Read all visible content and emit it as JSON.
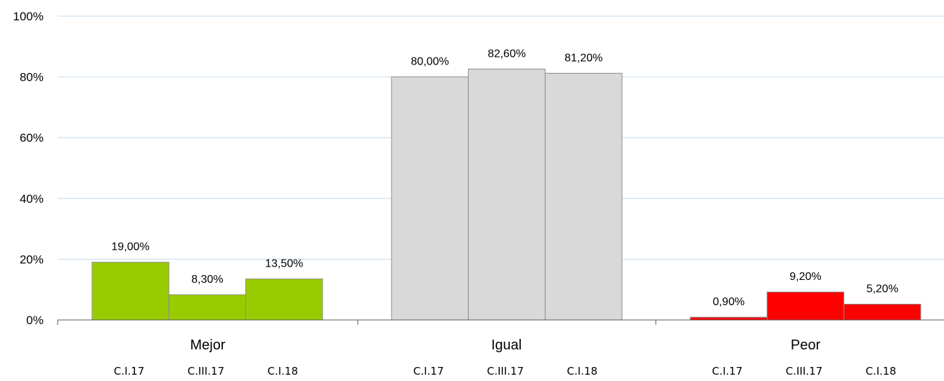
{
  "chart_data": {
    "type": "bar",
    "categories": [
      "Mejor",
      "Igual",
      "Peor"
    ],
    "series_labels": [
      "C.I.17",
      "C.III.17",
      "C.I.18"
    ],
    "values": [
      [
        19.0,
        8.3,
        13.5
      ],
      [
        80.0,
        82.6,
        81.2
      ],
      [
        0.9,
        9.2,
        5.2
      ]
    ],
    "value_labels": [
      [
        "19,00%",
        "8,30%",
        "13,50%"
      ],
      [
        "80,00%",
        "82,60%",
        "81,20%"
      ],
      [
        "0,90%",
        "9,20%",
        "5,20%"
      ]
    ],
    "colors": [
      "#99cc00",
      "#d9d9d9",
      "#ff0000"
    ],
    "ylim": [
      0,
      100
    ],
    "yticks": [
      0,
      20,
      40,
      60,
      80,
      100
    ],
    "ytick_labels": [
      "0%",
      "20%",
      "40%",
      "60%",
      "80%",
      "100%"
    ],
    "grid": true,
    "gridline_color": "#cfe3f0",
    "legend": "none"
  }
}
